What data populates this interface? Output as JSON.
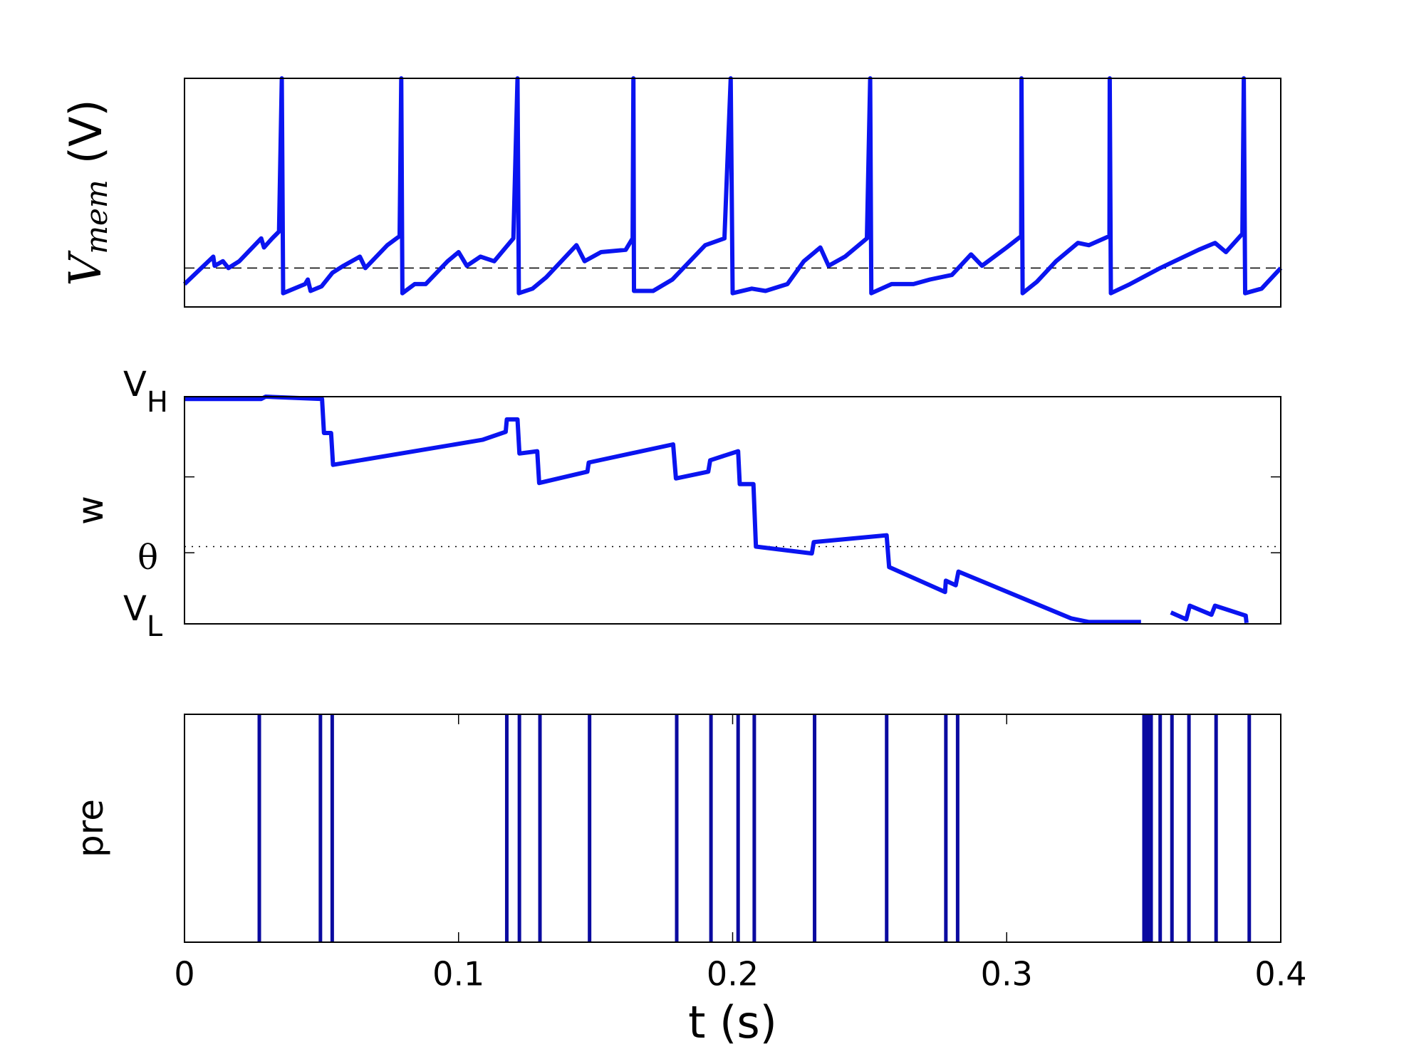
{
  "chart_data": [
    {
      "type": "line",
      "ylabel": {
        "text": "V",
        "sub": "mem",
        "unit": "(V)"
      },
      "xlim": [
        0,
        0.4
      ],
      "ylim": [
        0,
        1
      ],
      "threshold": 0.17,
      "threshold_style": "dashed",
      "x": [
        0,
        0.0105,
        0.011,
        0.014,
        0.016,
        0.02,
        0.028,
        0.029,
        0.032,
        0.0345,
        0.0355,
        0.036,
        0.044,
        0.045,
        0.046,
        0.05,
        0.054,
        0.058,
        0.064,
        0.066,
        0.074,
        0.0785,
        0.0791,
        0.0795,
        0.084,
        0.088,
        0.096,
        0.1,
        0.103,
        0.108,
        0.113,
        0.12,
        0.1215,
        0.122,
        0.127,
        0.132,
        0.143,
        0.146,
        0.152,
        0.161,
        0.1635,
        0.1638,
        0.164,
        0.171,
        0.178,
        0.19,
        0.197,
        0.1993,
        0.2,
        0.207,
        0.212,
        0.22,
        0.226,
        0.232,
        0.235,
        0.241,
        0.249,
        0.2502,
        0.2506,
        0.258,
        0.266,
        0.272,
        0.28,
        0.287,
        0.291,
        0.3,
        0.3053,
        0.3054,
        0.3058,
        0.311,
        0.318,
        0.326,
        0.33,
        0.3375,
        0.3376,
        0.338,
        0.345,
        0.356,
        0.37,
        0.376,
        0.38,
        0.386,
        0.3865,
        0.387,
        0.393,
        0.4
      ],
      "series": [
        {
          "color": "#0a14f0",
          "values": [
            0.1,
            0.22,
            0.18,
            0.2,
            0.17,
            0.2,
            0.3,
            0.26,
            0.3,
            0.33,
            1,
            0.06,
            0.1,
            0.12,
            0.07,
            0.09,
            0.15,
            0.18,
            0.22,
            0.17,
            0.27,
            0.31,
            1,
            0.06,
            0.1,
            0.1,
            0.2,
            0.24,
            0.18,
            0.22,
            0.2,
            0.3,
            1,
            0.06,
            0.08,
            0.13,
            0.27,
            0.2,
            0.24,
            0.25,
            0.3,
            1,
            0.07,
            0.07,
            0.12,
            0.27,
            0.3,
            1,
            0.06,
            0.08,
            0.07,
            0.1,
            0.2,
            0.26,
            0.18,
            0.22,
            0.3,
            1,
            0.06,
            0.1,
            0.1,
            0.12,
            0.14,
            0.23,
            0.18,
            0.26,
            0.31,
            1,
            0.06,
            0.11,
            0.2,
            0.28,
            0.27,
            0.31,
            1,
            0.06,
            0.1,
            0.17,
            0.25,
            0.28,
            0.24,
            0.32,
            1,
            0.06,
            0.08,
            0.17
          ]
        }
      ]
    },
    {
      "type": "line",
      "ylabel": {
        "text": "w"
      },
      "xlim": [
        0,
        0.4
      ],
      "ylim": [
        0,
        1
      ],
      "threshold": 0.34,
      "threshold_style": "dotted",
      "yticks": [
        {
          "value": 0,
          "label": "V",
          "sub": "L"
        },
        {
          "value": 0.313,
          "label": "θ"
        },
        {
          "value": 0.647,
          "label": null
        },
        {
          "value": 1,
          "label": "V",
          "sub": "H"
        }
      ],
      "x": [
        0,
        0.028,
        0.0296,
        0.0502,
        0.0509,
        0.0535,
        0.0542,
        0.1087,
        0.1172,
        0.1176,
        0.1215,
        0.1222,
        0.1287,
        0.1294,
        0.147,
        0.1475,
        0.1783,
        0.1793,
        0.1911,
        0.1918,
        0.202,
        0.2026,
        0.2076,
        0.2085,
        0.2289,
        0.2296,
        0.2562,
        0.2571,
        0.2775,
        0.2778,
        0.2814,
        0.2824,
        0.3235,
        0.33,
        0.349,
        0.3596,
        0.3599,
        0.3655,
        0.3668,
        0.3747,
        0.376,
        0.3872,
        0.3875,
        0.3924,
        0.4
      ],
      "series": [
        {
          "color": "#0a14f0",
          "values": [
            0.99,
            0.99,
            1,
            0.99,
            0.84,
            0.84,
            0.7,
            0.81,
            0.845,
            0.9,
            0.9,
            0.75,
            0.76,
            0.62,
            0.67,
            0.71,
            0.79,
            0.64,
            0.67,
            0.72,
            0.76,
            0.615,
            0.615,
            0.34,
            0.31,
            0.36,
            0.39,
            0.25,
            0.14,
            0.19,
            0.17,
            0.23,
            0.024,
            0.008,
            0.008,
            null,
            0.05,
            0.02,
            0.08,
            0.04,
            0.08,
            0.036,
            0.004,
            null,
            0.004
          ]
        }
      ]
    },
    {
      "type": "raster",
      "ylabel": {
        "text": "pre"
      },
      "xlabel": "t (s)",
      "xlim": [
        0,
        0.4
      ],
      "xticks": [
        0,
        0.1,
        0.2,
        0.3,
        0.4
      ],
      "color": "#0a0aa0",
      "events": [
        0.0273,
        0.0496,
        0.0539,
        0.1176,
        0.1222,
        0.1297,
        0.1478,
        0.1796,
        0.1921,
        0.202,
        0.2079,
        0.2299,
        0.2562,
        0.2778,
        0.2821,
        0.3501,
        0.3514,
        0.3527,
        0.356,
        0.3603,
        0.3665,
        0.3764,
        0.3885
      ]
    }
  ]
}
